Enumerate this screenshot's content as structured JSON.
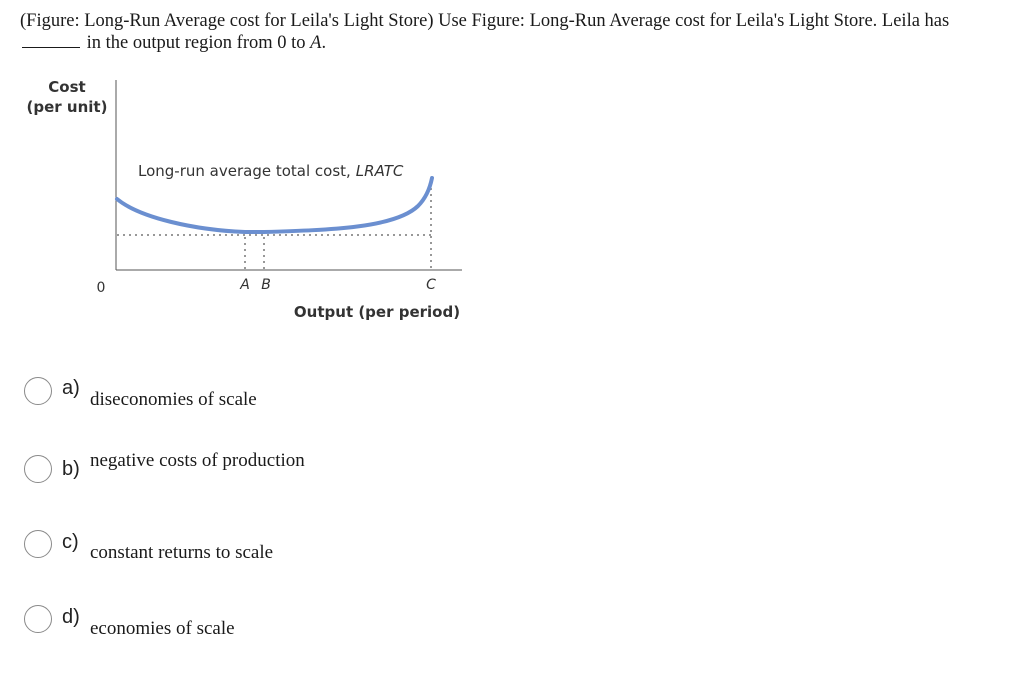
{
  "question": {
    "prefix": "(Figure: Long-Run Average cost for Leila's Light Store) Use Figure: Long-Run Average cost for Leila's Light Store. Leila has",
    "middle": "in the output region from 0 to",
    "var": "A",
    "suffix": "."
  },
  "figure": {
    "y_label_line1": "Cost",
    "y_label_line2": "(per unit)",
    "x_label": "Output (per period)",
    "curve_label": "Long-run average total cost,",
    "curve_label_abbrev": "LRATC",
    "tick_zero": "0",
    "tick_a": "A",
    "tick_b": "B",
    "tick_c": "C",
    "curve_color": "#6b8fd0"
  },
  "options": [
    {
      "letter": "a)",
      "text": "diseconomies of scale"
    },
    {
      "letter": "b)",
      "text": "negative costs of production"
    },
    {
      "letter": "c)",
      "text": "constant returns to scale"
    },
    {
      "letter": "d)",
      "text": "economies of scale"
    }
  ]
}
